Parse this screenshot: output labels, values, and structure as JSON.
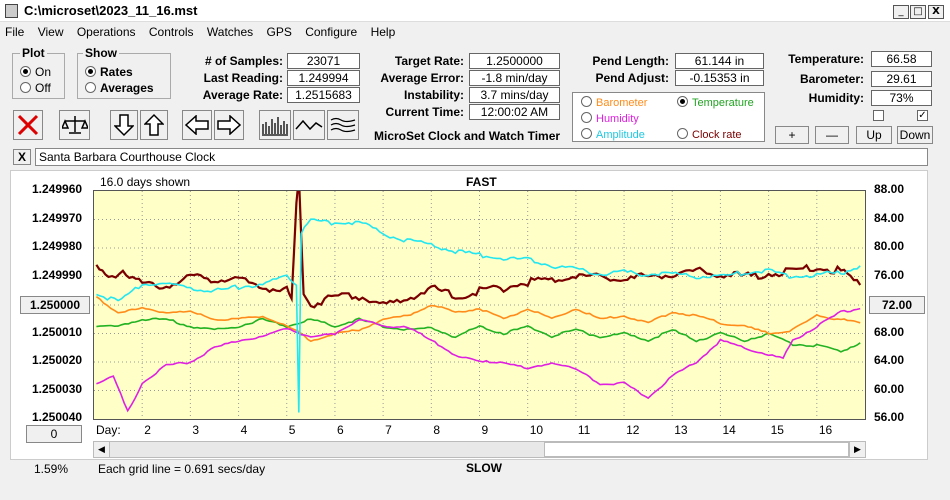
{
  "window": {
    "title": "C:\\microset\\2023_11_16.mst",
    "min": "_",
    "max": "□",
    "close": "X"
  },
  "menu": [
    "File",
    "View",
    "Operations",
    "Controls",
    "Watches",
    "GPS",
    "Configure",
    "Help"
  ],
  "plot_group": {
    "title": "Plot",
    "on": "On",
    "off": "Off",
    "selected": "On"
  },
  "show_group": {
    "title": "Show",
    "rates": "Rates",
    "averages": "Averages",
    "selected": "Rates"
  },
  "stats": {
    "samples_label": "# of Samples:",
    "samples": "23071",
    "last_label": "Last Reading:",
    "last": "1.249994",
    "avg_label": "Average Rate:",
    "avg": "1.2515683",
    "target_label": "Target Rate:",
    "target": "1.2500000",
    "error_label": "Average Error:",
    "error": "-1.8 min/day",
    "instab_label": "Instability:",
    "instab": "3.7 mins/day",
    "time_label": "Current Time:",
    "time": "12:00:02 AM",
    "pendlen_label": "Pend Length:",
    "pendlen": "61.144 in",
    "pendadj_label": "Pend Adjust:",
    "pendadj": "-0.15353 in",
    "temp_label": "Temperature:",
    "temp": "66.58",
    "baro_label": "Barometer:",
    "baro": "29.61",
    "hum_label": "Humidity:",
    "hum": "73%"
  },
  "app_caption": "MicroSet Clock and Watch Timer",
  "channels": {
    "barometer": "Barometer",
    "temperature": "Temperature",
    "humidity": "Humidity",
    "amplitude": "Amplitude",
    "clock_rate": "Clock rate",
    "selected": "Temperature"
  },
  "adjust_buttons": {
    "plus": "+",
    "minus": "—",
    "up": "Up",
    "down": "Down"
  },
  "description": "Santa Barbara Courthouse Clock",
  "close_desc": "X",
  "chart_header": {
    "days_shown": "16.0 days shown",
    "fast": "FAST",
    "slow": "SLOW",
    "grid_note": "Each grid line = 0.691 secs/day",
    "percent": "1.59%",
    "center_left": "1.250000",
    "center_right": "72.00",
    "zero_button": "0",
    "day_label": "Day:"
  },
  "colors": {
    "rate": "#7a0000",
    "temperature": "#22b222",
    "humidity": "#e020e0",
    "barometer": "#ff8c1a",
    "amplitude": "#22e6f0",
    "plot_bg": "#ffffc8"
  },
  "chart_data": {
    "type": "line",
    "title": "",
    "xlabel": "Day:",
    "x_ticks": [
      "2",
      "3",
      "4",
      "5",
      "6",
      "7",
      "8",
      "9",
      "10",
      "11",
      "12",
      "13",
      "14",
      "15",
      "16"
    ],
    "xlim": [
      1,
      17
    ],
    "y_left_ticks": [
      "1.249960",
      "1.249970",
      "1.249980",
      "1.249990",
      "1.250000",
      "1.250010",
      "1.250020",
      "1.250030",
      "1.250040"
    ],
    "ylim_left": [
      1.24996,
      1.25004
    ],
    "y_right_ticks": [
      "88.00",
      "84.00",
      "80.00",
      "76.00",
      "72.00",
      "68.00",
      "64.00",
      "60.00",
      "56.00"
    ],
    "ylim_right": [
      56,
      88
    ],
    "series": [
      {
        "key": "rate",
        "axis": "left",
        "values": [
          [
            1.05,
            1.249987
          ],
          [
            1.3,
            1.24999
          ],
          [
            1.6,
            1.249988
          ],
          [
            2.0,
            1.249993
          ],
          [
            2.5,
            1.249993
          ],
          [
            3.0,
            1.24999
          ],
          [
            3.5,
            1.249991
          ],
          [
            4.0,
            1.249991
          ],
          [
            4.5,
            1.249994
          ],
          [
            5.0,
            1.249995
          ],
          [
            5.1,
            1.249998
          ],
          [
            5.2,
            1.249965
          ],
          [
            5.25,
            1.249955
          ],
          [
            5.35,
            1.249995
          ],
          [
            5.5,
            1.25
          ],
          [
            6.0,
            1.249997
          ],
          [
            6.5,
            1.249997
          ],
          [
            7.0,
            1.25
          ],
          [
            7.5,
            1.249998
          ],
          [
            8.0,
            1.249994
          ],
          [
            8.5,
            1.249997
          ],
          [
            9.0,
            1.249995
          ],
          [
            9.5,
            1.249994
          ],
          [
            10.0,
            1.249992
          ],
          [
            10.5,
            1.249991
          ],
          [
            11.0,
            1.24999
          ],
          [
            11.5,
            1.24999
          ],
          [
            12.0,
            1.249991
          ],
          [
            12.5,
            1.24999
          ],
          [
            13.0,
            1.249989
          ],
          [
            13.5,
            1.249988
          ],
          [
            14.0,
            1.249989
          ],
          [
            14.5,
            1.24999
          ],
          [
            15.0,
            1.249989
          ],
          [
            15.5,
            1.249988
          ],
          [
            16.0,
            1.249987
          ],
          [
            16.5,
            1.249988
          ],
          [
            16.9,
            1.249993
          ]
        ]
      },
      {
        "key": "temperature",
        "axis": "right",
        "values": [
          [
            1.05,
            69
          ],
          [
            1.5,
            69
          ],
          [
            2.0,
            70
          ],
          [
            2.5,
            70
          ],
          [
            3.0,
            69
          ],
          [
            3.5,
            68.5
          ],
          [
            4.0,
            69
          ],
          [
            4.5,
            70
          ],
          [
            5.0,
            69
          ],
          [
            5.5,
            70
          ],
          [
            6.0,
            69
          ],
          [
            6.5,
            70
          ],
          [
            7.0,
            69
          ],
          [
            7.5,
            68.5
          ],
          [
            8.0,
            68.8
          ],
          [
            8.5,
            67.5
          ],
          [
            9.0,
            69
          ],
          [
            9.5,
            68
          ],
          [
            10.0,
            69
          ],
          [
            10.5,
            67.6
          ],
          [
            11.0,
            68.5
          ],
          [
            11.5,
            67.5
          ],
          [
            12.0,
            68
          ],
          [
            12.5,
            67
          ],
          [
            13.0,
            68.5
          ],
          [
            13.5,
            67
          ],
          [
            14.0,
            68
          ],
          [
            14.5,
            67
          ],
          [
            15.0,
            68
          ],
          [
            15.5,
            66.5
          ],
          [
            16.0,
            66.3
          ],
          [
            16.5,
            65.5
          ],
          [
            16.9,
            66.7
          ]
        ]
      },
      {
        "key": "humidity",
        "axis": "right",
        "values": [
          [
            1.05,
            61
          ],
          [
            1.4,
            62
          ],
          [
            1.7,
            57
          ],
          [
            2.0,
            61
          ],
          [
            2.5,
            63.5
          ],
          [
            3.0,
            64
          ],
          [
            3.5,
            66
          ],
          [
            4.0,
            67
          ],
          [
            4.5,
            67.5
          ],
          [
            5.0,
            68.8
          ],
          [
            5.3,
            68
          ],
          [
            5.5,
            67.5
          ],
          [
            6.0,
            68
          ],
          [
            6.5,
            70
          ],
          [
            7.0,
            69
          ],
          [
            7.5,
            69
          ],
          [
            8.0,
            67
          ],
          [
            8.5,
            65
          ],
          [
            9.0,
            64
          ],
          [
            9.5,
            64
          ],
          [
            10.0,
            63
          ],
          [
            10.5,
            64
          ],
          [
            11.0,
            63
          ],
          [
            11.5,
            61
          ],
          [
            12.0,
            61
          ],
          [
            12.5,
            59
          ],
          [
            13.0,
            62
          ],
          [
            13.5,
            64
          ],
          [
            14.0,
            67
          ],
          [
            14.5,
            66
          ],
          [
            15.0,
            65
          ],
          [
            15.3,
            64.5
          ],
          [
            15.5,
            67
          ],
          [
            16.0,
            69
          ],
          [
            16.5,
            71
          ],
          [
            16.9,
            71.5
          ]
        ]
      },
      {
        "key": "barometer",
        "axis": "right",
        "values": [
          [
            1.05,
            73
          ],
          [
            1.5,
            71
          ],
          [
            2.0,
            71.5
          ],
          [
            2.5,
            71
          ],
          [
            3.0,
            71
          ],
          [
            3.5,
            70
          ],
          [
            4.0,
            70
          ],
          [
            4.5,
            70.5
          ],
          [
            5.0,
            69
          ],
          [
            5.3,
            68
          ],
          [
            5.5,
            67
          ],
          [
            6.0,
            68
          ],
          [
            6.5,
            68.5
          ],
          [
            7.0,
            70
          ],
          [
            7.5,
            70.5
          ],
          [
            8.0,
            72
          ],
          [
            8.5,
            71
          ],
          [
            9.0,
            71.5
          ],
          [
            9.5,
            70
          ],
          [
            10.0,
            71.5
          ],
          [
            10.5,
            70
          ],
          [
            11.0,
            71.5
          ],
          [
            11.5,
            70
          ],
          [
            12.0,
            70.5
          ],
          [
            12.5,
            69.5
          ],
          [
            13.0,
            71
          ],
          [
            13.5,
            70.5
          ],
          [
            14.0,
            69.5
          ],
          [
            14.5,
            69
          ],
          [
            15.0,
            68
          ],
          [
            15.5,
            68.5
          ],
          [
            16.0,
            70.5
          ],
          [
            16.5,
            70
          ],
          [
            16.9,
            69.5
          ]
        ]
      },
      {
        "key": "amplitude",
        "axis": "right",
        "values": [
          [
            1.05,
            73.5
          ],
          [
            1.5,
            72.5
          ],
          [
            2.0,
            75
          ],
          [
            2.5,
            75
          ],
          [
            3.0,
            74.5
          ],
          [
            3.5,
            74
          ],
          [
            4.0,
            74.5
          ],
          [
            4.5,
            75
          ],
          [
            5.0,
            76
          ],
          [
            5.2,
            75
          ],
          [
            5.25,
            57
          ],
          [
            5.3,
            82
          ],
          [
            5.5,
            84
          ],
          [
            6.0,
            83.5
          ],
          [
            6.5,
            83.7
          ],
          [
            7.0,
            82
          ],
          [
            7.5,
            81
          ],
          [
            8.0,
            80.5
          ],
          [
            8.5,
            79.5
          ],
          [
            9.0,
            79
          ],
          [
            9.5,
            78.5
          ],
          [
            10.0,
            78.4
          ],
          [
            10.5,
            77.5
          ],
          [
            11.0,
            77
          ],
          [
            11.5,
            76.5
          ],
          [
            12.0,
            76.6
          ],
          [
            12.5,
            76.3
          ],
          [
            13.0,
            76.4
          ],
          [
            13.5,
            76
          ],
          [
            14.0,
            76
          ],
          [
            14.5,
            76.5
          ],
          [
            15.0,
            76.8
          ],
          [
            15.5,
            76
          ],
          [
            16.0,
            76.3
          ],
          [
            16.5,
            76.5
          ],
          [
            16.9,
            77.5
          ]
        ]
      }
    ]
  }
}
